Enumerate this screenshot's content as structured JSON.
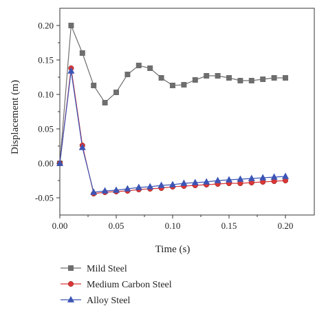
{
  "chart_data": {
    "type": "line",
    "title": "",
    "xlabel": "Time (s)",
    "ylabel": "Displacement (m)",
    "xlim": [
      0.0,
      0.2
    ],
    "ylim": [
      -0.075,
      0.225
    ],
    "x_ticks": [
      0.0,
      0.05,
      0.1,
      0.15,
      0.2
    ],
    "x_tick_labels": [
      "0.00",
      "0.05",
      "0.10",
      "0.15",
      "0.20"
    ],
    "y_ticks": [
      -0.05,
      0.0,
      0.05,
      0.1,
      0.15,
      0.2
    ],
    "y_tick_labels": [
      "-0.05",
      "0.00",
      "0.05",
      "0.10",
      "0.15",
      "0.20"
    ],
    "grid": false,
    "legend_position": "bottom",
    "x": [
      0.0,
      0.01,
      0.02,
      0.03,
      0.04,
      0.05,
      0.06,
      0.07,
      0.08,
      0.09,
      0.1,
      0.11,
      0.12,
      0.13,
      0.14,
      0.15,
      0.16,
      0.17,
      0.18,
      0.19,
      0.2
    ],
    "series": [
      {
        "name": "Mild Steel",
        "color": "#6e6e6e",
        "marker": "square",
        "values": [
          0.0,
          0.2,
          0.16,
          0.113,
          0.088,
          0.103,
          0.129,
          0.142,
          0.138,
          0.124,
          0.113,
          0.114,
          0.121,
          0.127,
          0.127,
          0.124,
          0.12,
          0.12,
          0.122,
          0.124,
          0.124
        ]
      },
      {
        "name": "Medium Carbon Steel",
        "color": "#d93636",
        "marker": "circle",
        "values": [
          0.0,
          0.138,
          0.026,
          -0.044,
          -0.042,
          -0.041,
          -0.04,
          -0.038,
          -0.037,
          -0.036,
          -0.034,
          -0.033,
          -0.032,
          -0.031,
          -0.03,
          -0.029,
          -0.029,
          -0.028,
          -0.027,
          -0.026,
          -0.025
        ]
      },
      {
        "name": "Alloy Steel",
        "color": "#3c55b5",
        "marker": "triangle",
        "values": [
          0.0,
          0.134,
          0.023,
          -0.042,
          -0.04,
          -0.039,
          -0.037,
          -0.035,
          -0.034,
          -0.032,
          -0.031,
          -0.029,
          -0.028,
          -0.027,
          -0.025,
          -0.024,
          -0.023,
          -0.022,
          -0.021,
          -0.02,
          -0.019
        ]
      }
    ]
  }
}
